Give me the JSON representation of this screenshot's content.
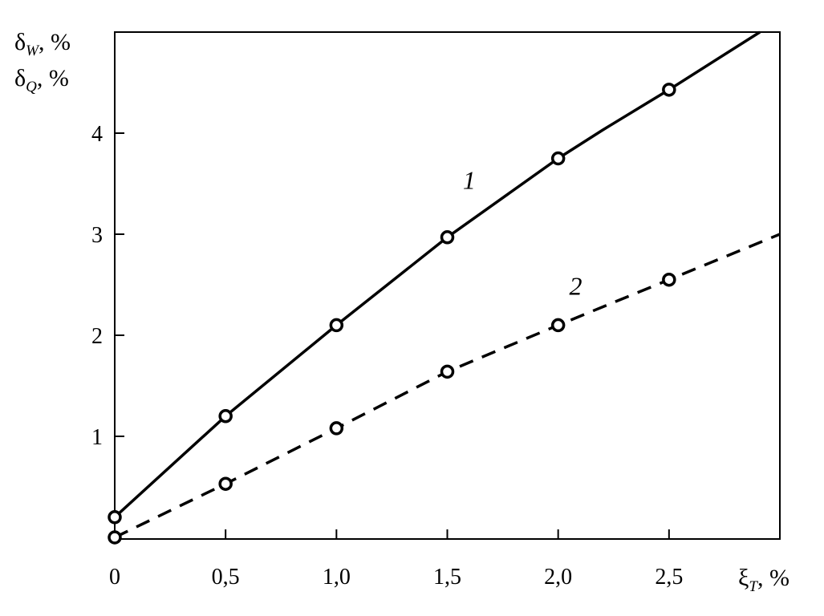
{
  "chart_data": {
    "type": "line",
    "title": "",
    "xlabel": {
      "main": "ξ",
      "sub": "T",
      "unit": ", %"
    },
    "ylabel": [
      {
        "main": "δ",
        "sub": "W",
        "unit": ", %"
      },
      {
        "main": "δ",
        "sub": "Q",
        "unit": ", %"
      }
    ],
    "xlim": [
      0,
      3.0
    ],
    "ylim": [
      0,
      5.0
    ],
    "xticks": [
      0,
      0.5,
      1.0,
      1.5,
      2.0,
      2.5
    ],
    "xtick_labels": [
      "0",
      "0,5",
      "1,0",
      "1,5",
      "2,0",
      "2,5"
    ],
    "yticks": [
      1,
      2,
      3,
      4
    ],
    "ytick_labels": [
      "1",
      "2",
      "3",
      "4"
    ],
    "grid": false,
    "series": [
      {
        "name": "1",
        "style": "solid",
        "color": "#000000",
        "markers": [
          [
            0,
            0.2
          ],
          [
            0.5,
            1.2
          ],
          [
            1.0,
            2.1
          ],
          [
            1.5,
            2.97
          ],
          [
            2.0,
            3.75
          ],
          [
            2.5,
            4.43
          ]
        ],
        "line": [
          [
            0,
            0.2
          ],
          [
            0.5,
            1.2
          ],
          [
            1.0,
            2.1
          ],
          [
            1.5,
            2.97
          ],
          [
            2.0,
            3.75
          ],
          [
            2.2,
            4.03
          ],
          [
            2.5,
            4.43
          ],
          [
            2.91,
            5.0
          ]
        ],
        "label_at": [
          1.57,
          3.45
        ]
      },
      {
        "name": "2",
        "style": "dashed",
        "color": "#000000",
        "markers": [
          [
            0,
            0.0
          ],
          [
            0.5,
            0.53
          ],
          [
            1.0,
            1.08
          ],
          [
            1.5,
            1.64
          ],
          [
            2.0,
            2.1
          ],
          [
            2.5,
            2.55
          ]
        ],
        "line": [
          [
            0,
            0.0
          ],
          [
            0.5,
            0.53
          ],
          [
            1.0,
            1.08
          ],
          [
            1.5,
            1.64
          ],
          [
            2.0,
            2.1
          ],
          [
            2.5,
            2.55
          ],
          [
            3.0,
            3.0
          ]
        ],
        "label_at": [
          2.05,
          2.4
        ]
      }
    ]
  }
}
